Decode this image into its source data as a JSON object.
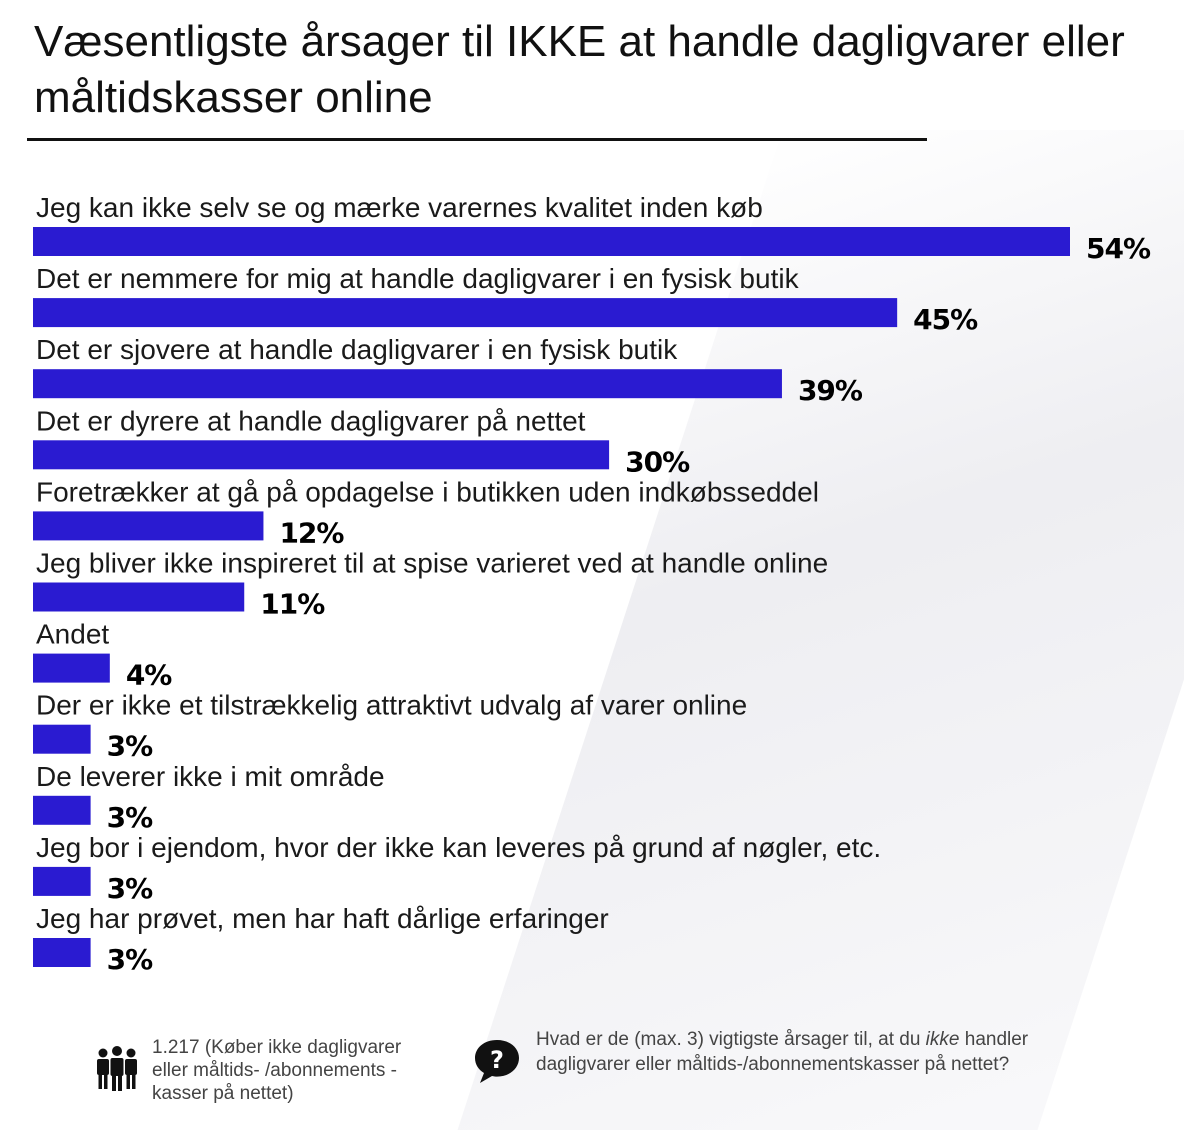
{
  "chart_data": {
    "type": "bar",
    "orientation": "horizontal",
    "title": "Væsentligste årsager til IKKE at handle dagligvarer eller måltidskasser online",
    "categories": [
      "Jeg kan ikke selv se og mærke varernes kvalitet inden køb",
      "Det er nemmere for mig at handle dagligvarer i en fysisk butik",
      "Det er sjovere at handle dagligvarer i en fysisk butik",
      "Det er dyrere at handle dagligvarer på nettet",
      "Foretrække­r at gå på opdagelse i butikken uden indkøbsseddel",
      "Jeg bliver ikke inspireret til at spise varieret ved at handle online",
      "Andet",
      "Der er ikke et tilstrækkelig attraktivt udvalg af varer online",
      "De leverer ikke i mit område",
      "Jeg bor i ejendom, hvor der ikke kan leveres på grund af nøgler, etc.",
      "Jeg har prøvet, men har haft dårlige erfaringer"
    ],
    "values": [
      54,
      45,
      39,
      30,
      12,
      11,
      4,
      3,
      3,
      3,
      3
    ],
    "value_labels": [
      "54%",
      "45%",
      "39%",
      "30%",
      "12%",
      "11%",
      "4%",
      "3%",
      "3%",
      "3%",
      "3%"
    ],
    "unit": "%",
    "bar_color": "#2a1bd1",
    "xlim": [
      0,
      54
    ]
  },
  "footer": {
    "sample_text": "1.217 (Køber ikke dagligvarer eller måltids- /abonnements -kasser på nettet)",
    "question_pre": "Hvad er de (max. 3) vigtigste årsager til, at du ",
    "question_em": "ikke",
    "question_post": " handler dagligvarer eller måltids-/abonnementskasser på nettet?",
    "sample_icon": "people-icon",
    "question_icon": "question-chat-icon"
  }
}
